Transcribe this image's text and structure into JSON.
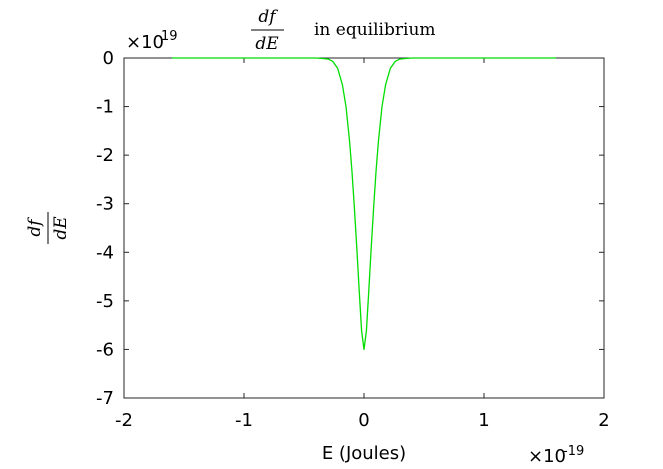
{
  "chart_data": {
    "type": "line",
    "title": {
      "numerator": "df",
      "denominator": "dE",
      "suffix": "in equilibrium"
    },
    "xlabel": "E (Joules)",
    "ylabel": {
      "numerator": "df",
      "denominator": "dE"
    },
    "x_exponent": {
      "base": "×10",
      "power": "-19"
    },
    "y_exponent": {
      "base": "×10",
      "power": "19"
    },
    "xlim": [
      -2,
      2
    ],
    "ylim": [
      -7,
      0
    ],
    "xticks": [
      -2,
      -1,
      0,
      1,
      2
    ],
    "xtick_labels": [
      "-2",
      "-1",
      "0",
      "1",
      "2"
    ],
    "yticks": [
      0,
      -1,
      -2,
      -3,
      -4,
      -5,
      -6,
      -7
    ],
    "ytick_labels": [
      "0",
      "-1",
      "-2",
      "-3",
      "-4",
      "-5",
      "-6",
      "-7"
    ],
    "grid": false,
    "legend": "none",
    "series": [
      {
        "color": "#00dd00",
        "x_range": [
          -1.6,
          1.6
        ],
        "points": [
          [
            -1.6,
            0
          ],
          [
            -0.4,
            0
          ],
          [
            -0.3,
            -0.02
          ],
          [
            -0.26,
            -0.07
          ],
          [
            -0.22,
            -0.21
          ],
          [
            -0.18,
            -0.55
          ],
          [
            -0.15,
            -1.0
          ],
          [
            -0.12,
            -1.72
          ],
          [
            -0.1,
            -2.34
          ],
          [
            -0.08,
            -3.09
          ],
          [
            -0.06,
            -3.91
          ],
          [
            -0.04,
            -4.79
          ],
          [
            -0.02,
            -5.62
          ],
          [
            0,
            -6.0
          ],
          [
            0.02,
            -5.62
          ],
          [
            0.04,
            -4.79
          ],
          [
            0.06,
            -3.91
          ],
          [
            0.08,
            -3.09
          ],
          [
            0.1,
            -2.34
          ],
          [
            0.12,
            -1.72
          ],
          [
            0.15,
            -1.0
          ],
          [
            0.18,
            -0.55
          ],
          [
            0.22,
            -0.21
          ],
          [
            0.26,
            -0.07
          ],
          [
            0.3,
            -0.02
          ],
          [
            0.4,
            0
          ],
          [
            1.6,
            0
          ]
        ]
      }
    ]
  }
}
